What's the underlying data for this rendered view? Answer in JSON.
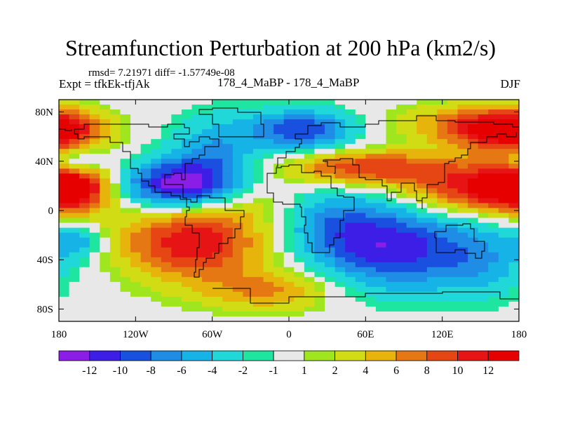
{
  "chart_data": {
    "type": "heatmap",
    "title": "Streamfunction Perturbation at 200 hPa (km2/s)",
    "stats": "rmsd= 7.21971 diff= -1.57749e-08",
    "left_label": "Expt = tfkEk-tfjAk",
    "center_label": "178_4_MaBP - 178_4_MaBP",
    "right_label": "DJF",
    "x_ticks": [
      "180",
      "120W",
      "60W",
      "0",
      "60E",
      "120E",
      "180"
    ],
    "x_tick_values": [
      -180,
      -120,
      -60,
      0,
      60,
      120,
      180
    ],
    "y_ticks": [
      "80N",
      "40N",
      "0",
      "40S",
      "80S"
    ],
    "y_tick_values": [
      80,
      40,
      0,
      -40,
      -80
    ],
    "xlim": [
      -180,
      180
    ],
    "ylim": [
      -90,
      90
    ],
    "colorbar": {
      "labels": [
        "-12",
        "-10",
        "-8",
        "-6",
        "-4",
        "-2",
        "-1",
        "1",
        "2",
        "4",
        "6",
        "8",
        "10",
        "12"
      ],
      "colors": [
        "#8a1ee6",
        "#3c1ee6",
        "#1a50e0",
        "#1f8ce6",
        "#16b4e6",
        "#20d8d8",
        "#1ee6a0",
        "#e8e8e8",
        "#a0e61e",
        "#d2dc14",
        "#e6b40a",
        "#e67814",
        "#e64614",
        "#e61414",
        "#e60000"
      ]
    },
    "fields": [
      {
        "lon": -170,
        "lat": 18,
        "value": 11,
        "rx": 22,
        "ry": 14
      },
      {
        "lon": -175,
        "lat": 65,
        "value": 9,
        "rx": 24,
        "ry": 12
      },
      {
        "lon": -165,
        "lat": 40,
        "value": -6,
        "rx": 14,
        "ry": 7
      },
      {
        "lon": -165,
        "lat": -25,
        "value": -5,
        "rx": 14,
        "ry": 10
      },
      {
        "lon": -90,
        "lat": 20,
        "value": -13,
        "rx": 32,
        "ry": 14
      },
      {
        "lon": -60,
        "lat": 45,
        "value": -6,
        "rx": 24,
        "ry": 22
      },
      {
        "lon": -75,
        "lat": -25,
        "value": 12,
        "rx": 40,
        "ry": 22
      },
      {
        "lon": -15,
        "lat": -65,
        "value": 6,
        "rx": 36,
        "ry": 12
      },
      {
        "lon": 10,
        "lat": 65,
        "value": -10,
        "rx": 30,
        "ry": 12
      },
      {
        "lon": 60,
        "lat": 35,
        "value": 10,
        "rx": 44,
        "ry": 10
      },
      {
        "lon": 80,
        "lat": -30,
        "value": -11,
        "rx": 40,
        "ry": 24
      },
      {
        "lon": 150,
        "lat": 18,
        "value": 12,
        "rx": 40,
        "ry": 14
      },
      {
        "lon": 155,
        "lat": 65,
        "value": 9,
        "rx": 30,
        "ry": 13
      },
      {
        "lon": 120,
        "lat": 72,
        "value": 3,
        "rx": 40,
        "ry": 10
      },
      {
        "lon": 150,
        "lat": -40,
        "value": -5,
        "rx": 28,
        "ry": 22
      },
      {
        "lon": -20,
        "lat": 5,
        "value": 2,
        "rx": 22,
        "ry": 12
      },
      {
        "lon": 30,
        "lat": -10,
        "value": -5,
        "rx": 30,
        "ry": 20
      }
    ]
  }
}
